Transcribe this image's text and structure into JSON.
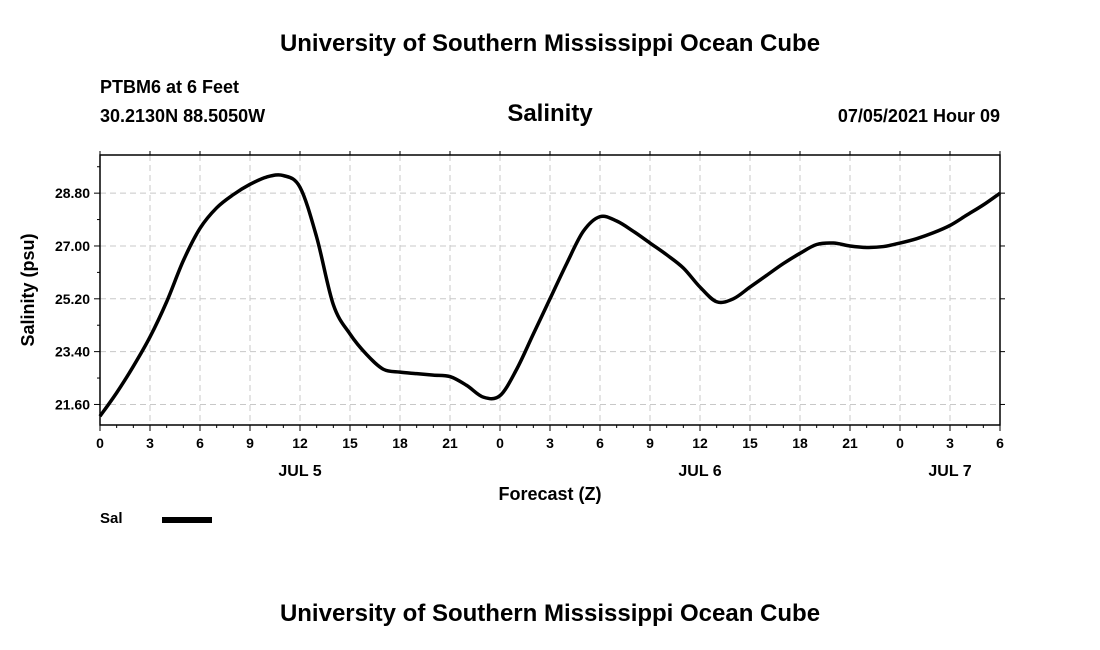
{
  "header": {
    "title": "University of Southern Mississippi Ocean Cube",
    "station": "PTBM6 at 6 Feet",
    "coords": "30.2130N  88.5050W",
    "chart_title": "Salinity",
    "datetime": "07/05/2021 Hour 09"
  },
  "footer": {
    "title": "University of Southern Mississippi Ocean Cube"
  },
  "legend": {
    "label": "Sal",
    "color": "#000000"
  },
  "chart_data": {
    "type": "line",
    "title": "Salinity",
    "xlabel": "Forecast (Z)",
    "ylabel": "Salinity (psu)",
    "xlim": [
      0,
      54
    ],
    "ylim": [
      20.9,
      30.1
    ],
    "grid": true,
    "legend_position": "bottom-left",
    "x_tick_labels": [
      "0",
      "3",
      "6",
      "9",
      "12",
      "15",
      "18",
      "21",
      "0",
      "3",
      "6",
      "9",
      "12",
      "15",
      "18",
      "21",
      "0",
      "3",
      "6"
    ],
    "x_day_labels": [
      {
        "label": "JUL 5",
        "x": 12
      },
      {
        "label": "JUL 6",
        "x": 36
      },
      {
        "label": "JUL 7",
        "x": 51
      }
    ],
    "y_ticks": [
      "21.60",
      "23.40",
      "25.20",
      "27.00",
      "28.80"
    ],
    "series": [
      {
        "name": "Sal",
        "color": "#000000",
        "x": [
          0,
          1,
          2,
          3,
          4,
          5,
          6,
          7,
          8,
          9,
          10,
          11,
          12,
          13,
          14,
          15,
          16,
          17,
          18,
          19,
          20,
          21,
          22,
          23,
          24,
          25,
          26,
          27,
          28,
          29,
          30,
          31,
          32,
          33,
          34,
          35,
          36,
          37,
          38,
          39,
          40,
          41,
          42,
          43,
          44,
          45,
          46,
          47,
          48,
          49,
          50,
          51,
          52,
          53,
          54
        ],
        "y": [
          21.2,
          22.0,
          22.9,
          23.9,
          25.1,
          26.5,
          27.6,
          28.3,
          28.75,
          29.1,
          29.35,
          29.4,
          29.0,
          27.3,
          25.0,
          24.0,
          23.3,
          22.8,
          22.7,
          22.65,
          22.6,
          22.55,
          22.25,
          21.85,
          21.9,
          22.8,
          24.0,
          25.2,
          26.4,
          27.5,
          28.0,
          27.85,
          27.5,
          27.1,
          26.7,
          26.25,
          25.6,
          25.1,
          25.2,
          25.6,
          26.0,
          26.4,
          26.75,
          27.05,
          27.1,
          27.0,
          26.95,
          26.98,
          27.1,
          27.25,
          27.45,
          27.7,
          28.05,
          28.4,
          28.8
        ]
      }
    ]
  }
}
